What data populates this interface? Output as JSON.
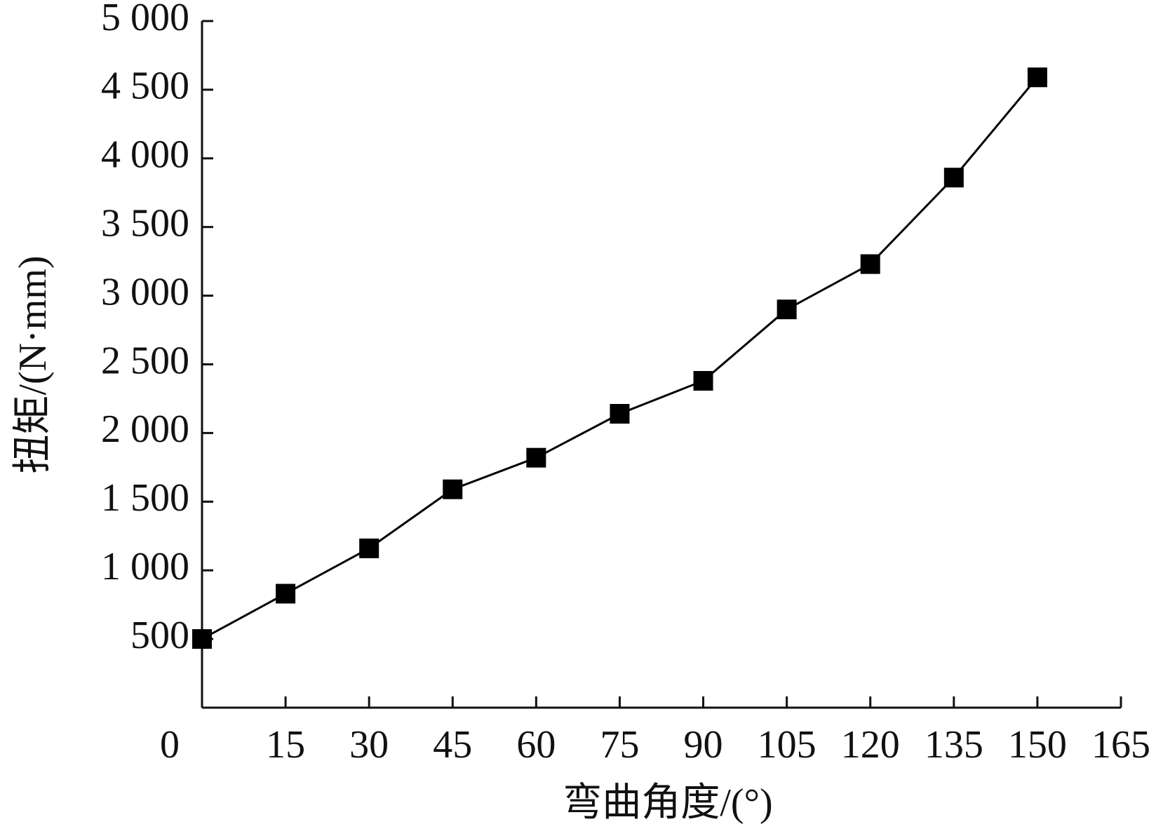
{
  "chart_data": {
    "type": "line",
    "x_label": "弯曲角度/(°)",
    "y_label": "扭矩/(N·mm)",
    "x": [
      0,
      15,
      30,
      45,
      60,
      75,
      90,
      105,
      120,
      135,
      150
    ],
    "values": [
      500,
      830,
      1160,
      1590,
      1820,
      2140,
      2380,
      2900,
      3230,
      3860,
      4590
    ],
    "color": "#000000",
    "marker": "square",
    "xlim": [
      0,
      165
    ],
    "xticks": [
      0,
      15,
      30,
      45,
      60,
      75,
      90,
      105,
      120,
      135,
      150,
      165
    ],
    "ylim": [
      0,
      5000
    ],
    "yticks": [
      500,
      {
        "value": 1000,
        "label": "1 000"
      },
      {
        "value": 1500,
        "label": "1 500"
      },
      {
        "value": 2000,
        "label": "2 000"
      },
      {
        "value": 2500,
        "label": "2 500"
      },
      {
        "value": 3000,
        "label": "3 000"
      },
      {
        "value": 3500,
        "label": "3 500"
      },
      {
        "value": 4000,
        "label": "4 000"
      },
      {
        "value": 4500,
        "label": "4 500"
      },
      {
        "value": 5000,
        "label": "5 000"
      }
    ],
    "grid": false
  }
}
